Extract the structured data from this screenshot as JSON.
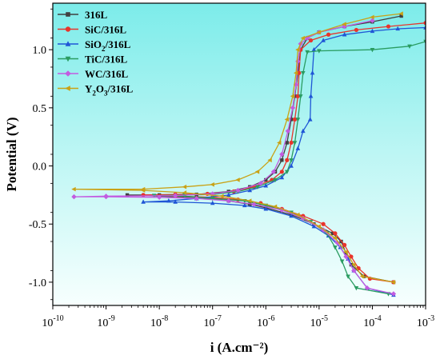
{
  "chart_data": {
    "type": "line",
    "title": "",
    "xlabel": "i (A.cm⁻²)",
    "ylabel": "Potential (V)",
    "xscale": "log",
    "xlim": [
      1e-10,
      0.001
    ],
    "ylim": [
      -1.2,
      1.4
    ],
    "x_ticks": [
      1e-10,
      1e-09,
      1e-08,
      1e-07,
      1e-06,
      1e-05,
      0.0001,
      0.001
    ],
    "x_tick_labels": [
      {
        "base": "10",
        "exp": "-10"
      },
      {
        "base": "10",
        "exp": "-9"
      },
      {
        "base": "10",
        "exp": "-8"
      },
      {
        "base": "10",
        "exp": "-7"
      },
      {
        "base": "10",
        "exp": "-6"
      },
      {
        "base": "10",
        "exp": "-5"
      },
      {
        "base": "10",
        "exp": "-4"
      },
      {
        "base": "10",
        "exp": "-3"
      }
    ],
    "y_ticks": [
      -1.0,
      -0.5,
      0.0,
      0.5,
      1.0
    ],
    "y_tick_labels": [
      "-1.0",
      "-0.5",
      "0.0",
      "0.5",
      "1.0"
    ],
    "grid": false,
    "legend_position": "top-left",
    "series": [
      {
        "name": "316L",
        "legend_label": {
          "main": "316L",
          "sub": "",
          "rest": ""
        },
        "color": "#404040",
        "marker": "square",
        "points": [
          [
            0.00035,
            1.29
          ],
          [
            0.0001,
            1.24
          ],
          [
            3e-05,
            1.2
          ],
          [
            1e-05,
            1.15
          ],
          [
            6e-06,
            1.1
          ],
          [
            4.5e-06,
            1.0
          ],
          [
            4e-06,
            0.8
          ],
          [
            3.5e-06,
            0.6
          ],
          [
            3e-06,
            0.4
          ],
          [
            2.5e-06,
            0.2
          ],
          [
            2e-06,
            0.05
          ],
          [
            1.5e-06,
            -0.05
          ],
          [
            1e-06,
            -0.12
          ],
          [
            5e-07,
            -0.18
          ],
          [
            2e-07,
            -0.22
          ],
          [
            5e-08,
            -0.245
          ],
          [
            1e-08,
            -0.25
          ],
          [
            2.5e-09,
            -0.25
          ],
          [
            1e-08,
            -0.26
          ],
          [
            5e-08,
            -0.27
          ],
          [
            2e-07,
            -0.3
          ],
          [
            5e-07,
            -0.33
          ],
          [
            1e-06,
            -0.36
          ],
          [
            3e-06,
            -0.42
          ],
          [
            8e-06,
            -0.5
          ],
          [
            1.8e-05,
            -0.58
          ],
          [
            2.6e-05,
            -0.65
          ],
          [
            3.2e-05,
            -0.75
          ],
          [
            4e-05,
            -0.85
          ],
          [
            7e-05,
            -0.95
          ],
          [
            0.00025,
            -1.0
          ]
        ]
      },
      {
        "name": "SiC/316L",
        "legend_label": {
          "main": "SiC/316L",
          "sub": "",
          "rest": ""
        },
        "color": "#e8342b",
        "marker": "circle",
        "points": [
          [
            0.001,
            1.23
          ],
          [
            0.0002,
            1.2
          ],
          [
            5e-05,
            1.17
          ],
          [
            1.5e-05,
            1.13
          ],
          [
            7e-06,
            1.08
          ],
          [
            4.5e-06,
            1.0
          ],
          [
            4.2e-06,
            0.8
          ],
          [
            4e-06,
            0.6
          ],
          [
            3.5e-06,
            0.4
          ],
          [
            3e-06,
            0.2
          ],
          [
            2.5e-06,
            0.05
          ],
          [
            2e-06,
            -0.05
          ],
          [
            1.3e-06,
            -0.12
          ],
          [
            6e-07,
            -0.18
          ],
          [
            2.5e-07,
            -0.22
          ],
          [
            8e-08,
            -0.24
          ],
          [
            2e-08,
            -0.245
          ],
          [
            5e-09,
            -0.25
          ],
          [
            2e-08,
            -0.26
          ],
          [
            1e-07,
            -0.27
          ],
          [
            3e-07,
            -0.29
          ],
          [
            8e-07,
            -0.32
          ],
          [
            2e-06,
            -0.37
          ],
          [
            5e-06,
            -0.43
          ],
          [
            1.2e-05,
            -0.5
          ],
          [
            2e-05,
            -0.58
          ],
          [
            3e-05,
            -0.68
          ],
          [
            4e-05,
            -0.78
          ],
          [
            5.5e-05,
            -0.88
          ],
          [
            9e-05,
            -0.97
          ],
          [
            0.00025,
            -1.0
          ]
        ]
      },
      {
        "name": "SiO2/316L",
        "legend_label": {
          "main": "SiO",
          "sub": "2",
          "rest": "/316L"
        },
        "color": "#1f56d6",
        "marker": "triangle",
        "points": [
          [
            0.001,
            1.19
          ],
          [
            0.0003,
            1.18
          ],
          [
            0.0001,
            1.16
          ],
          [
            3e-05,
            1.13
          ],
          [
            1.2e-05,
            1.08
          ],
          [
            8e-06,
            1.0
          ],
          [
            7.5e-06,
            0.8
          ],
          [
            7e-06,
            0.6
          ],
          [
            6.8e-06,
            0.4
          ],
          [
            5e-06,
            0.3
          ],
          [
            4e-06,
            0.15
          ],
          [
            3e-06,
            0.0
          ],
          [
            2e-06,
            -0.1
          ],
          [
            1e-06,
            -0.17
          ],
          [
            5e-07,
            -0.21
          ],
          [
            2e-07,
            -0.25
          ],
          [
            5e-08,
            -0.28
          ],
          [
            1.5e-08,
            -0.3
          ],
          [
            5e-09,
            -0.31
          ],
          [
            2e-08,
            -0.31
          ],
          [
            1e-07,
            -0.32
          ],
          [
            4e-07,
            -0.34
          ],
          [
            1e-06,
            -0.37
          ],
          [
            3e-06,
            -0.43
          ],
          [
            8e-06,
            -0.52
          ],
          [
            1.5e-05,
            -0.6
          ],
          [
            2.5e-05,
            -0.7
          ],
          [
            3.5e-05,
            -0.8
          ],
          [
            4.5e-05,
            -0.9
          ],
          [
            8e-05,
            -1.05
          ],
          [
            0.00025,
            -1.11
          ]
        ]
      },
      {
        "name": "TiC/316L",
        "legend_label": {
          "main": "TiC/316L",
          "sub": "",
          "rest": ""
        },
        "color": "#2a9c61",
        "marker": "triangle-down",
        "points": [
          [
            0.001,
            1.07
          ],
          [
            0.0005,
            1.03
          ],
          [
            0.0001,
            1.0
          ],
          [
            1e-05,
            0.99
          ],
          [
            6e-06,
            0.98
          ],
          [
            5e-06,
            0.8
          ],
          [
            4.5e-06,
            0.6
          ],
          [
            4e-06,
            0.4
          ],
          [
            3.5e-06,
            0.2
          ],
          [
            3e-06,
            0.05
          ],
          [
            2.5e-06,
            -0.05
          ],
          [
            1.5e-06,
            -0.12
          ],
          [
            7e-07,
            -0.18
          ],
          [
            3e-07,
            -0.22
          ],
          [
            1e-07,
            -0.245
          ],
          [
            3e-08,
            -0.25
          ],
          [
            8e-09,
            -0.255
          ],
          [
            3e-08,
            -0.26
          ],
          [
            1e-07,
            -0.28
          ],
          [
            4e-07,
            -0.3
          ],
          [
            1e-06,
            -0.34
          ],
          [
            3e-06,
            -0.4
          ],
          [
            7e-06,
            -0.48
          ],
          [
            1.4e-05,
            -0.58
          ],
          [
            2e-05,
            -0.7
          ],
          [
            2.7e-05,
            -0.82
          ],
          [
            3.5e-05,
            -0.95
          ],
          [
            5e-05,
            -1.05
          ],
          [
            0.0002,
            -1.1
          ]
        ]
      },
      {
        "name": "WC/316L",
        "legend_label": {
          "main": "WC/316L",
          "sub": "",
          "rest": ""
        },
        "color": "#c25ce0",
        "marker": "diamond",
        "points": [
          [
            0.0001,
            1.25
          ],
          [
            3e-05,
            1.2
          ],
          [
            1e-05,
            1.15
          ],
          [
            6e-06,
            1.1
          ],
          [
            4.5e-06,
            1.05
          ],
          [
            4e-06,
            0.9
          ],
          [
            3.7e-06,
            0.7
          ],
          [
            3.2e-06,
            0.5
          ],
          [
            2.6e-06,
            0.3
          ],
          [
            2e-06,
            0.1
          ],
          [
            1.4e-06,
            -0.05
          ],
          [
            8e-07,
            -0.15
          ],
          [
            3e-07,
            -0.21
          ],
          [
            1e-07,
            -0.24
          ],
          [
            2e-08,
            -0.255
          ],
          [
            1e-09,
            -0.26
          ],
          [
            2.5e-10,
            -0.265
          ],
          [
            1e-09,
            -0.265
          ],
          [
            1e-08,
            -0.27
          ],
          [
            5e-08,
            -0.28
          ],
          [
            2e-07,
            -0.3
          ],
          [
            6e-07,
            -0.33
          ],
          [
            2e-06,
            -0.38
          ],
          [
            5e-06,
            -0.45
          ],
          [
            1.2e-05,
            -0.55
          ],
          [
            2.2e-05,
            -0.66
          ],
          [
            3.2e-05,
            -0.78
          ],
          [
            4.5e-05,
            -0.9
          ],
          [
            8e-05,
            -1.05
          ],
          [
            0.00025,
            -1.1
          ]
        ]
      },
      {
        "name": "Y2O3/316L",
        "legend_label": {
          "main": "Y",
          "sub": "2",
          "rest": "O3/316L"
        },
        "legend_parts": [
          {
            "text": "Y",
            "sub": false
          },
          {
            "text": "2",
            "sub": true
          },
          {
            "text": "O",
            "sub": false
          },
          {
            "text": "3",
            "sub": true
          },
          {
            "text": "/316L",
            "sub": false
          }
        ],
        "color": "#c9a216",
        "marker": "triangle-left",
        "points": [
          [
            0.00035,
            1.31
          ],
          [
            0.0001,
            1.28
          ],
          [
            3e-05,
            1.22
          ],
          [
            1e-05,
            1.15
          ],
          [
            5e-06,
            1.1
          ],
          [
            4e-06,
            1.0
          ],
          [
            3.7e-06,
            0.8
          ],
          [
            3.2e-06,
            0.6
          ],
          [
            2.5e-06,
            0.4
          ],
          [
            1.8e-06,
            0.2
          ],
          [
            1.2e-06,
            0.05
          ],
          [
            7e-07,
            -0.05
          ],
          [
            3e-07,
            -0.12
          ],
          [
            1e-07,
            -0.16
          ],
          [
            3e-08,
            -0.18
          ],
          [
            5e-09,
            -0.2
          ],
          [
            2.5e-10,
            -0.2
          ],
          [
            5e-09,
            -0.21
          ],
          [
            3e-08,
            -0.23
          ],
          [
            1.5e-07,
            -0.26
          ],
          [
            5e-07,
            -0.3
          ],
          [
            1.5e-06,
            -0.35
          ],
          [
            4e-06,
            -0.42
          ],
          [
            1e-05,
            -0.52
          ],
          [
            2e-05,
            -0.62
          ],
          [
            3.2e-05,
            -0.74
          ],
          [
            4.5e-05,
            -0.85
          ],
          [
            6.5e-05,
            -0.95
          ],
          [
            0.00025,
            -1.0
          ]
        ]
      }
    ]
  }
}
